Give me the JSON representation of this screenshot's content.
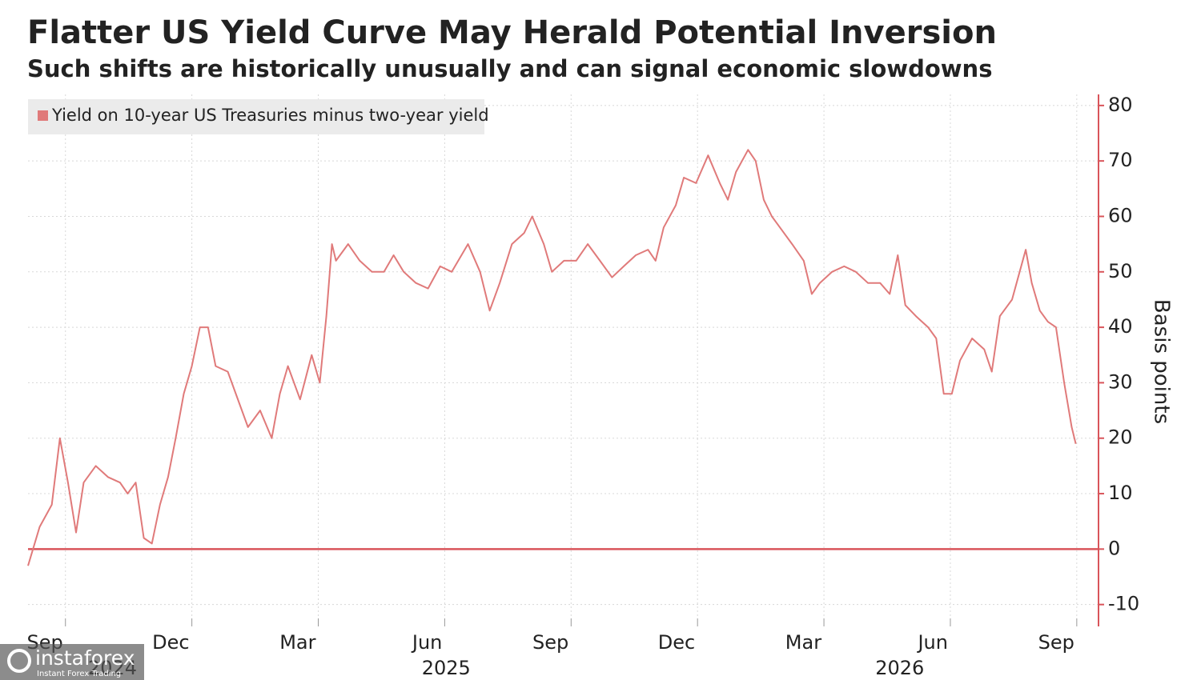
{
  "chart_data": {
    "type": "line",
    "title": "Flatter US Yield Curve May Herald Potential Inversion",
    "subtitle": "Such shifts are historically unusually and can signal economic slowdowns",
    "y_label": "Basis points",
    "watermark": {
      "brand": "instaforex",
      "tagline": "Instant Forex Trading"
    },
    "legend": "top-left",
    "grid": true,
    "xlim": [
      2024.593,
      2026.71
    ],
    "ylim": [
      -12.5,
      82
    ],
    "yticks": [
      -10,
      0,
      10,
      20,
      30,
      40,
      50,
      60,
      70,
      80
    ],
    "xticks": [
      {
        "value": 2024.667,
        "label": "Sep"
      },
      {
        "value": 2024.917,
        "label": "Dec"
      },
      {
        "value": 2025.167,
        "label": "Mar"
      },
      {
        "value": 2025.417,
        "label": "Jun"
      },
      {
        "value": 2025.667,
        "label": "Sep"
      },
      {
        "value": 2025.917,
        "label": "Dec"
      },
      {
        "value": 2026.167,
        "label": "Mar"
      },
      {
        "value": 2026.417,
        "label": "Jun"
      },
      {
        "value": 2026.667,
        "label": "Sep"
      }
    ],
    "year_labels": [
      {
        "value": 2024.76,
        "label": "2024"
      },
      {
        "value": 2025.42,
        "label": "2025"
      },
      {
        "value": 2026.317,
        "label": "2026"
      }
    ],
    "x": [
      2024.593,
      2024.616,
      2024.64,
      2024.656,
      2024.672,
      2024.688,
      2024.703,
      2024.727,
      2024.751,
      2024.775,
      2024.79,
      2024.806,
      2024.822,
      2024.838,
      2024.854,
      2024.87,
      2024.885,
      2024.901,
      2024.917,
      2024.933,
      2024.949,
      2024.964,
      2024.988,
      2025.012,
      2025.028,
      2025.052,
      2025.075,
      2025.091,
      2025.107,
      2025.131,
      2025.154,
      2025.17,
      2025.183,
      2025.194,
      2025.202,
      2025.226,
      2025.249,
      2025.273,
      2025.297,
      2025.316,
      2025.336,
      2025.36,
      2025.384,
      2025.408,
      2025.431,
      2025.463,
      2025.487,
      2025.506,
      2025.526,
      2025.55,
      2025.574,
      2025.59,
      2025.613,
      2025.629,
      2025.653,
      2025.677,
      2025.7,
      2025.724,
      2025.748,
      2025.771,
      2025.795,
      2025.819,
      2025.834,
      2025.85,
      2025.874,
      2025.89,
      2025.914,
      2025.938,
      2025.961,
      2025.977,
      2025.993,
      2026.017,
      2026.032,
      2026.048,
      2026.064,
      2026.08,
      2026.104,
      2026.127,
      2026.143,
      2026.159,
      2026.183,
      2026.207,
      2026.23,
      2026.254,
      2026.278,
      2026.297,
      2026.313,
      2026.328,
      2026.349,
      2026.373,
      2026.389,
      2026.404,
      2026.42,
      2026.436,
      2026.46,
      2026.484,
      2026.499,
      2026.515,
      2026.539,
      2026.554,
      2026.566,
      2026.578,
      2026.594,
      2026.61,
      2026.626,
      2026.642,
      2026.657,
      2026.665
    ],
    "series": [
      {
        "name": "Yield on 10-year US Treasuries minus two-year yield",
        "color": "#e07a7a",
        "values": [
          -3,
          4,
          8,
          20,
          12,
          3,
          12,
          15,
          13,
          12,
          10,
          12,
          2,
          1,
          8,
          13,
          20,
          28,
          33,
          40,
          40,
          33,
          32,
          26,
          22,
          25,
          20,
          28,
          33,
          27,
          35,
          30,
          42,
          55,
          52,
          55,
          52,
          50,
          50,
          53,
          50,
          48,
          47,
          51,
          50,
          55,
          50,
          43,
          48,
          55,
          57,
          60,
          55,
          50,
          52,
          52,
          55,
          52,
          49,
          51,
          53,
          54,
          52,
          58,
          62,
          67,
          66,
          71,
          66,
          63,
          68,
          72,
          70,
          63,
          60,
          58,
          55,
          52,
          46,
          48,
          50,
          51,
          50,
          48,
          48,
          46,
          53,
          44,
          42,
          40,
          38,
          28,
          28,
          34,
          38,
          36,
          32,
          42,
          45,
          50,
          54,
          48,
          43,
          41,
          40,
          30,
          22,
          19
        ]
      }
    ]
  }
}
